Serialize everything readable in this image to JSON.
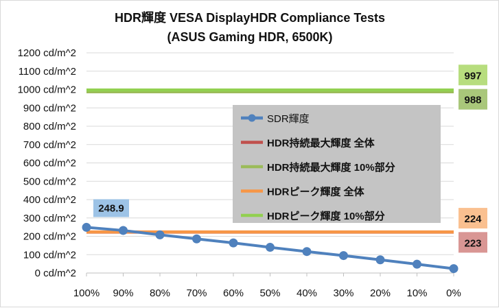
{
  "chart_data": {
    "type": "line",
    "title": "HDR輝度 VESA DisplayHDR Compliance Tests",
    "subtitle": "(ASUS Gaming HDR, 6500K)",
    "xlabel": "",
    "ylabel": "",
    "ylim": [
      0,
      1200
    ],
    "y_ticks": [
      0,
      100,
      200,
      300,
      400,
      500,
      600,
      700,
      800,
      900,
      1000,
      1100,
      1200
    ],
    "y_tick_labels": [
      "0 cd/m^2",
      "100 cd/m^2",
      "200 cd/m^2",
      "300 cd/m^2",
      "400 cd/m^2",
      "500 cd/m^2",
      "600 cd/m^2",
      "700 cd/m^2",
      "800 cd/m^2",
      "900 cd/m^2",
      "1000 cd/m^2",
      "1100 cd/m^2",
      "1200 cd/m^2"
    ],
    "grid": true,
    "legend_position": "center-right",
    "categories": [
      "100%",
      "90%",
      "80%",
      "70%",
      "60%",
      "50%",
      "40%",
      "30%",
      "20%",
      "10%",
      "0%"
    ],
    "series": [
      {
        "name": "SDR輝度",
        "color": "#4f81bd",
        "marker": "circle",
        "values": [
          248.9,
          232,
          208,
          186,
          164,
          140,
          117,
          95,
          72,
          48,
          24
        ],
        "labels": [
          {
            "index": 0,
            "text": "248.9",
            "bg": "#9dc3e6"
          }
        ]
      },
      {
        "name": "HDR持続最大輝度 全体",
        "color": "#c0504d",
        "constant": 223,
        "label": {
          "text": "223",
          "bg": "#d99694"
        }
      },
      {
        "name": "HDR持続最大輝度 10%部分",
        "color": "#9bbb59",
        "constant": 988,
        "label": {
          "text": "988",
          "bg": "#a9c77a"
        }
      },
      {
        "name": "HDRピーク輝度 全体",
        "color": "#f79646",
        "constant": 224,
        "label": {
          "text": "224",
          "bg": "#fac090"
        }
      },
      {
        "name": "HDRピーク輝度 10%部分",
        "color": "#92d050",
        "constant": 997,
        "label": {
          "text": "997",
          "bg": "#b7dd7e"
        }
      }
    ]
  }
}
